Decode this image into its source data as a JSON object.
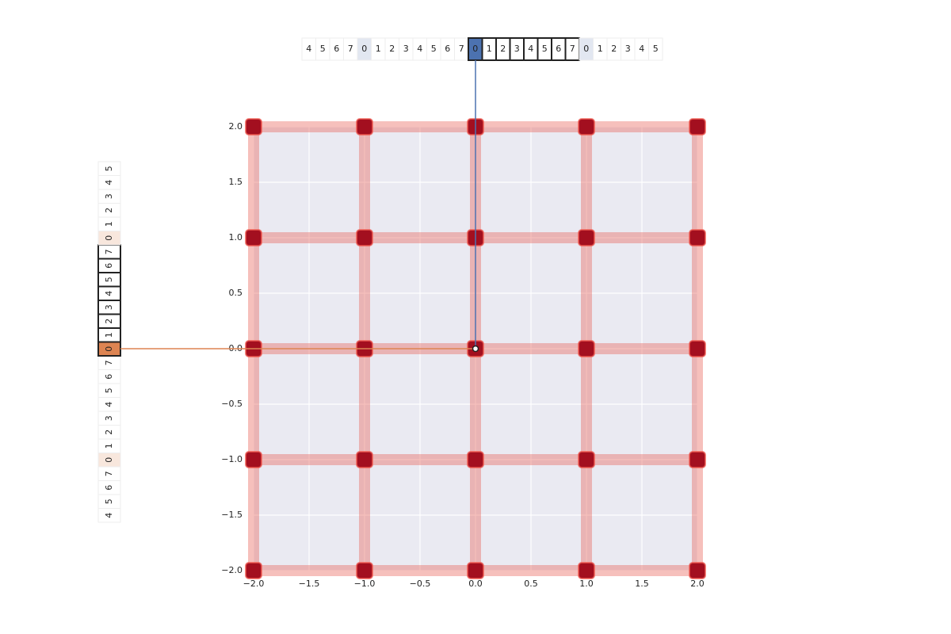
{
  "chart_data": {
    "type": "scatter",
    "xlim": [
      -2,
      2
    ],
    "ylim": [
      -2,
      2
    ],
    "xticks": [
      {
        "value": -2,
        "label": "−2.0"
      },
      {
        "value": -1.5,
        "label": "−1.5"
      },
      {
        "value": -1,
        "label": "−1.0"
      },
      {
        "value": -0.5,
        "label": "−0.5"
      },
      {
        "value": 0,
        "label": "0.0"
      },
      0.5,
      {
        "value": 1,
        "label": "1.0"
      },
      1.5,
      {
        "value": 2,
        "label": "2.0"
      }
    ],
    "yticks": [
      {
        "value": -2,
        "label": "−2.0"
      },
      {
        "value": -1.5,
        "label": "−1.5"
      },
      {
        "value": -1,
        "label": "−1.0"
      },
      {
        "value": -0.5,
        "label": "−0.5"
      },
      {
        "value": 0,
        "label": "0.0"
      },
      0.5,
      {
        "value": 1,
        "label": "1.0"
      },
      1.5,
      {
        "value": 2,
        "label": "2.0"
      }
    ],
    "grid": true,
    "lattice_x": [
      -2,
      -1,
      0,
      1,
      2
    ],
    "lattice_y": [
      -2,
      -1,
      0,
      1,
      2
    ],
    "points": {
      "x": [
        0
      ],
      "y": [
        0
      ]
    },
    "x_strip": {
      "color": "#4c72b0",
      "tint": "#e2e7f1",
      "cells": [
        {
          "label": 4,
          "style": "faded"
        },
        {
          "label": 5,
          "style": "faded"
        },
        {
          "label": 6,
          "style": "faded"
        },
        {
          "label": 7,
          "style": "faded"
        },
        {
          "label": 0,
          "style": "faded-origin"
        },
        {
          "label": 1,
          "style": "faded"
        },
        {
          "label": 2,
          "style": "faded"
        },
        {
          "label": 3,
          "style": "faded"
        },
        {
          "label": 4,
          "style": "faded"
        },
        {
          "label": 5,
          "style": "faded"
        },
        {
          "label": 6,
          "style": "faded"
        },
        {
          "label": 7,
          "style": "faded"
        },
        {
          "label": 0,
          "style": "selected"
        },
        {
          "label": 1,
          "style": "active"
        },
        {
          "label": 2,
          "style": "active"
        },
        {
          "label": 3,
          "style": "active"
        },
        {
          "label": 4,
          "style": "active"
        },
        {
          "label": 5,
          "style": "active"
        },
        {
          "label": 6,
          "style": "active"
        },
        {
          "label": 7,
          "style": "active"
        },
        {
          "label": 0,
          "style": "faded-origin"
        },
        {
          "label": 1,
          "style": "faded"
        },
        {
          "label": 2,
          "style": "faded"
        },
        {
          "label": 3,
          "style": "faded"
        },
        {
          "label": 4,
          "style": "faded"
        },
        {
          "label": 5,
          "style": "faded"
        }
      ]
    },
    "y_strip": {
      "color": "#dd8452",
      "tint": "#f8e7dd",
      "cells": [
        {
          "label": 4,
          "style": "faded"
        },
        {
          "label": 5,
          "style": "faded"
        },
        {
          "label": 6,
          "style": "faded"
        },
        {
          "label": 7,
          "style": "faded"
        },
        {
          "label": 0,
          "style": "faded-origin"
        },
        {
          "label": 1,
          "style": "faded"
        },
        {
          "label": 2,
          "style": "faded"
        },
        {
          "label": 3,
          "style": "faded"
        },
        {
          "label": 4,
          "style": "faded"
        },
        {
          "label": 5,
          "style": "faded"
        },
        {
          "label": 6,
          "style": "faded"
        },
        {
          "label": 7,
          "style": "faded"
        },
        {
          "label": 0,
          "style": "selected"
        },
        {
          "label": 1,
          "style": "active"
        },
        {
          "label": 2,
          "style": "active"
        },
        {
          "label": 3,
          "style": "active"
        },
        {
          "label": 4,
          "style": "active"
        },
        {
          "label": 5,
          "style": "active"
        },
        {
          "label": 6,
          "style": "active"
        },
        {
          "label": 7,
          "style": "active"
        },
        {
          "label": 0,
          "style": "faded-origin"
        },
        {
          "label": 1,
          "style": "faded"
        },
        {
          "label": 2,
          "style": "faded"
        },
        {
          "label": 3,
          "style": "faded"
        },
        {
          "label": 4,
          "style": "faded"
        },
        {
          "label": 5,
          "style": "faded"
        }
      ]
    }
  }
}
